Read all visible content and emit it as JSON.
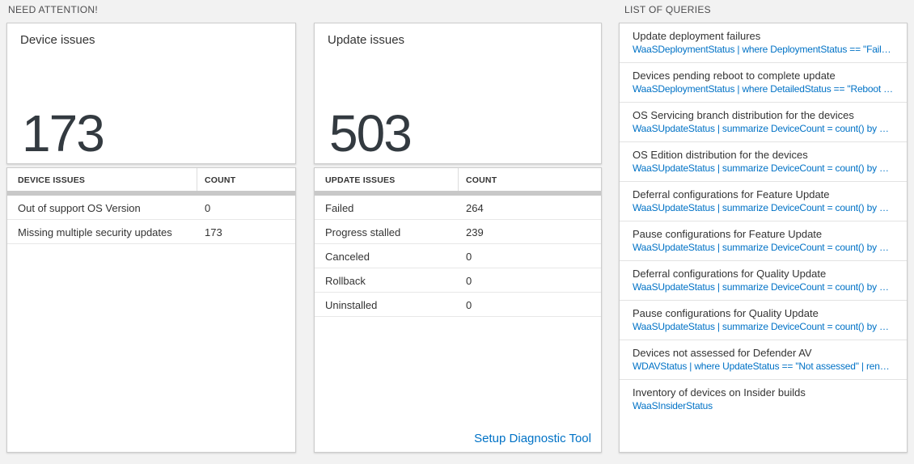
{
  "colors": {
    "accent_blue": "#0072c6",
    "body_text": "#333333",
    "heading_text": "#4d4d4f",
    "big_number": "#333a40",
    "panel_border": "#cccccc",
    "divider_bar": "#c8c8c8",
    "row_border": "#e8e8e8",
    "page_bg": "#f2f2f2"
  },
  "need_attention": {
    "section_title": "NEED ATTENTION!",
    "device_card": {
      "title": "Device issues",
      "count": "173"
    },
    "device_table": {
      "headers": [
        "DEVICE ISSUES",
        "COUNT"
      ],
      "rows": [
        {
          "label": "Out of support OS Version",
          "count": "0"
        },
        {
          "label": "Missing multiple security updates",
          "count": "173"
        }
      ]
    },
    "update_card": {
      "title": "Update issues",
      "count": "503"
    },
    "update_table": {
      "headers": [
        "UPDATE ISSUES",
        "COUNT"
      ],
      "rows": [
        {
          "label": "Failed",
          "count": "264"
        },
        {
          "label": "Progress stalled",
          "count": "239"
        },
        {
          "label": "Canceled",
          "count": "0"
        },
        {
          "label": "Rollback",
          "count": "0"
        },
        {
          "label": "Uninstalled",
          "count": "0"
        }
      ],
      "footer_link": "Setup Diagnostic Tool"
    }
  },
  "queries": {
    "section_title": "LIST OF QUERIES",
    "items": [
      {
        "title": "Update deployment failures",
        "query": "WaaSDeploymentStatus | where DeploymentStatus == \"Failed\" |..."
      },
      {
        "title": "Devices pending reboot to complete update",
        "query": "WaaSDeploymentStatus | where DetailedStatus == \"Reboot pend..."
      },
      {
        "title": "OS Servicing branch distribution for the devices",
        "query": "WaaSUpdateStatus | summarize DeviceCount = count() by OSSer..."
      },
      {
        "title": "OS Edition distribution for the devices",
        "query": "WaaSUpdateStatus | summarize DeviceCount = count() by OSEdit..."
      },
      {
        "title": "Deferral configurations for Feature Update",
        "query": "WaaSUpdateStatus | summarize DeviceCount = count() by Featur..."
      },
      {
        "title": "Pause configurations for Feature Update",
        "query": "WaaSUpdateStatus | summarize DeviceCount = count() by Featur..."
      },
      {
        "title": "Deferral configurations for Quality Update",
        "query": "WaaSUpdateStatus | summarize DeviceCount = count() by Qualit..."
      },
      {
        "title": "Pause configurations for Quality Update",
        "query": "WaaSUpdateStatus | summarize DeviceCount = count() by Qualit..."
      },
      {
        "title": "Devices not assessed for Defender AV",
        "query": "WDAVStatus | where UpdateStatus == \"Not assessed\" | render ta..."
      },
      {
        "title": "Inventory of devices on Insider builds",
        "query": "WaaSInsiderStatus"
      }
    ]
  }
}
